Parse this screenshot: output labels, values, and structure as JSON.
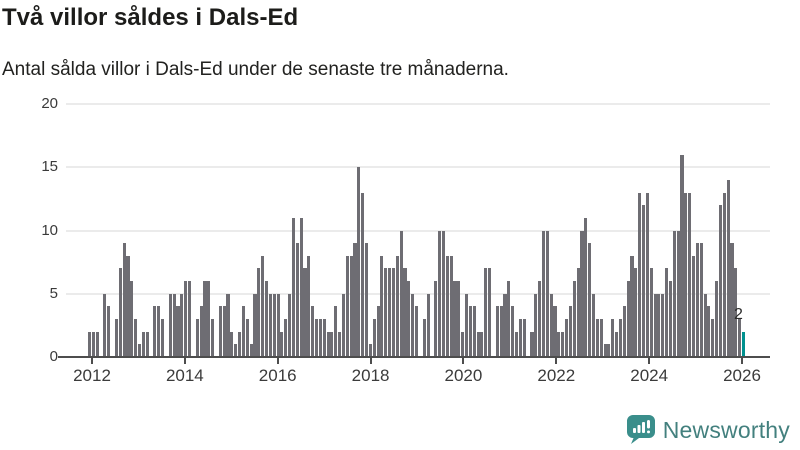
{
  "header": {
    "title": "Två villor såldes i Dals-Ed",
    "subtitle": "Antal sålda villor i Dals-Ed under de senaste tre månaderna."
  },
  "chart_data": {
    "type": "bar",
    "title": "Två villor såldes i Dals-Ed",
    "xlabel": "",
    "ylabel": "",
    "x_unit": "month",
    "ylim": [
      0,
      20
    ],
    "y_ticks": [
      0,
      5,
      10,
      15,
      20
    ],
    "x_tick_labels": [
      "2012",
      "2014",
      "2016",
      "2018",
      "2020",
      "2022",
      "2024",
      "2026"
    ],
    "grid": "horizontal",
    "values": [
      2,
      2,
      2,
      0,
      5,
      4,
      0,
      3,
      7,
      9,
      8,
      6,
      3,
      1,
      2,
      2,
      0,
      4,
      4,
      3,
      0,
      5,
      5,
      4,
      5,
      6,
      6,
      0,
      3,
      4,
      6,
      6,
      3,
      0,
      4,
      4,
      5,
      2,
      1,
      2,
      4,
      3,
      1,
      5,
      7,
      8,
      6,
      5,
      5,
      5,
      2,
      3,
      5,
      11,
      9,
      11,
      7,
      8,
      4,
      3,
      3,
      3,
      2,
      2,
      4,
      2,
      5,
      8,
      8,
      9,
      15,
      13,
      9,
      1,
      3,
      4,
      8,
      7,
      7,
      7,
      8,
      10,
      7,
      6,
      5,
      4,
      0,
      3,
      5,
      0,
      6,
      10,
      10,
      8,
      8,
      6,
      6,
      2,
      5,
      4,
      4,
      2,
      2,
      7,
      7,
      0,
      4,
      4,
      5,
      6,
      4,
      2,
      3,
      3,
      0,
      2,
      5,
      6,
      10,
      10,
      5,
      4,
      2,
      2,
      3,
      4,
      6,
      7,
      10,
      11,
      9,
      5,
      3,
      3,
      1,
      1,
      3,
      2,
      3,
      4,
      6,
      8,
      7,
      13,
      12,
      13,
      7,
      5,
      5,
      5,
      7,
      6,
      10,
      10,
      16,
      13,
      13,
      8,
      9,
      9,
      5,
      4,
      3,
      6,
      12,
      13,
      14,
      9,
      7,
      3,
      2
    ],
    "highlight": {
      "index": 170,
      "value": 2,
      "label": "2",
      "color": "#00918f"
    },
    "bar_color": "#6e6d73"
  },
  "footer": {
    "brand": "Newsworthy"
  },
  "colors": {
    "background": "#ffffff",
    "bar": "#6e6d73",
    "highlight": "#00918f",
    "gridline": "#ebebeb",
    "axis": "#4d4d4d",
    "logo": "#3a8e8b",
    "logo_text": "#43807e"
  }
}
